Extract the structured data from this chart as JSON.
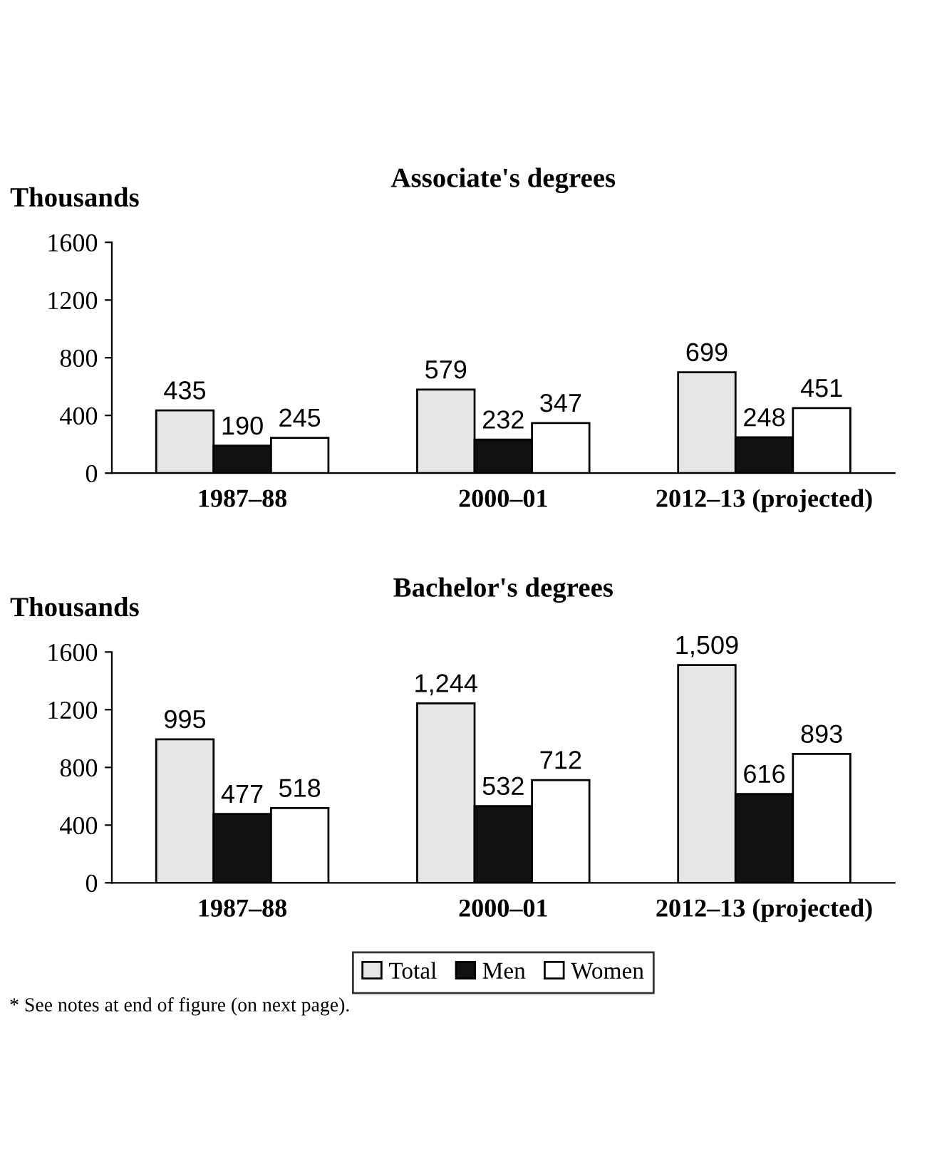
{
  "chart_data": [
    {
      "type": "bar",
      "title": "Associate's degrees",
      "ylabel": "Thousands",
      "categories": [
        "1987–88",
        "2000–01",
        "2012–13 (projected)"
      ],
      "series": [
        {
          "color": "#e6e6e6",
          "values": [
            435,
            579,
            699
          ],
          "value_labels": [
            "435",
            "579",
            "699"
          ]
        },
        {
          "color": "#111111",
          "values": [
            190,
            232,
            248
          ],
          "value_labels": [
            "190",
            "232",
            "248"
          ]
        },
        {
          "color": "#ffffff",
          "values": [
            245,
            347,
            451
          ],
          "value_labels": [
            "245",
            "347",
            "451"
          ]
        }
      ],
      "ylim": [
        0,
        1600
      ],
      "yticks": [
        0,
        400,
        800,
        1200,
        1600
      ],
      "grid": false
    },
    {
      "type": "bar",
      "title": "Bachelor's degrees",
      "ylabel": "Thousands",
      "categories": [
        "1987–88",
        "2000–01",
        "2012–13 (projected)"
      ],
      "series": [
        {
          "name": "Total",
          "color": "#e6e6e6",
          "values": [
            995,
            1244,
            1509
          ],
          "value_labels": [
            "995",
            "1,244",
            "1,509"
          ]
        },
        {
          "name": "Men",
          "color": "#111111",
          "values": [
            477,
            532,
            616
          ],
          "value_labels": [
            "477",
            "532",
            "616"
          ]
        },
        {
          "name": "Women",
          "color": "#ffffff",
          "values": [
            518,
            712,
            893
          ],
          "value_labels": [
            "518",
            "712",
            "893"
          ]
        }
      ],
      "ylim": [
        0,
        1600
      ],
      "yticks": [
        0,
        400,
        800,
        1200,
        1600
      ],
      "grid": false,
      "legend": "bottom",
      "annotations": [
        "* See notes at end of figure (on next page)."
      ]
    }
  ]
}
